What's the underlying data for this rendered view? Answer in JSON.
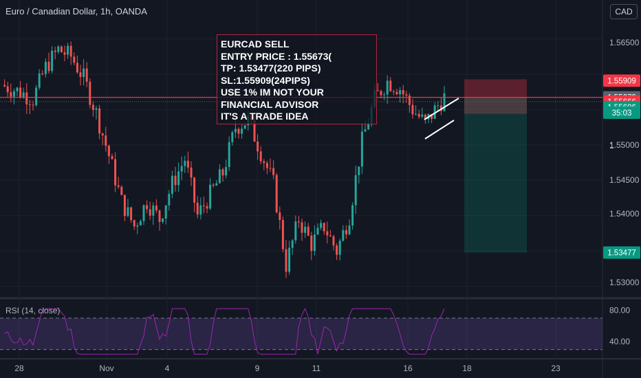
{
  "header": {
    "symbol_title": "Euro / Canadian Dollar, 1h, OANDA",
    "currency_button": "CAD"
  },
  "note": {
    "lines": [
      "EURCAD SELL",
      "ENTRY PRICE : 1.55673(",
      "TP: 1.53477(220 PIPS)",
      "SL:1.55909(24PIPS)",
      "USE 1% IM NOT YOUR",
      "FINANCIAL ADVISOR",
      "IT'S A TRADE IDEA"
    ]
  },
  "rsi": {
    "label": "RSI (14, close)",
    "upper_band": 70,
    "lower_band": 30,
    "axis_labels": [
      "80.00",
      "40.00"
    ]
  },
  "chart_data": {
    "type": "candlestick",
    "title": "Euro / Canadian Dollar, 1h, OANDA",
    "y_axis_labels": [
      "1.56500",
      "1.55000",
      "1.54500",
      "1.54000",
      "1.53000"
    ],
    "x_axis_labels": [
      "28",
      "Nov",
      "4",
      "9",
      "11",
      "16",
      "18",
      "23"
    ],
    "price_range_visible": [
      1.5285,
      1.5705
    ],
    "close_path": [
      [
        0,
        1.5585
      ],
      [
        6,
        1.5575
      ],
      [
        10,
        1.5565
      ],
      [
        14,
        1.561
      ],
      [
        18,
        1.5635
      ],
      [
        22,
        1.5625
      ],
      [
        26,
        1.5595
      ],
      [
        30,
        1.5545
      ],
      [
        34,
        1.5485
      ],
      [
        38,
        1.542
      ],
      [
        42,
        1.5385
      ],
      [
        46,
        1.542
      ],
      [
        50,
        1.5395
      ],
      [
        54,
        1.5445
      ],
      [
        58,
        1.548
      ],
      [
        62,
        1.54
      ],
      [
        66,
        1.543
      ],
      [
        70,
        1.546
      ],
      [
        74,
        1.5525
      ],
      [
        78,
        1.5535
      ],
      [
        82,
        1.549
      ],
      [
        86,
        1.5445
      ],
      [
        90,
        1.533
      ],
      [
        94,
        1.5395
      ],
      [
        98,
        1.536
      ],
      [
        102,
        1.5385
      ],
      [
        106,
        1.535
      ],
      [
        110,
        1.54
      ],
      [
        114,
        1.5505
      ],
      [
        118,
        1.5565
      ],
      [
        122,
        1.559
      ],
      [
        126,
        1.558
      ],
      [
        130,
        1.555
      ],
      [
        134,
        1.553
      ],
      [
        138,
        1.5556
      ],
      [
        140,
        1.55673
      ]
    ],
    "trade": {
      "direction": "short",
      "entry": 1.55673,
      "stop_loss": 1.55909,
      "take_profit": 1.53477
    },
    "price_tags": [
      {
        "label": "1.55909",
        "color": "#f23645",
        "price": 1.55909
      },
      {
        "label": "1.55673",
        "color": "#5d606b",
        "price": 1.55673
      },
      {
        "label": "1.55666",
        "color": "#f23645",
        "price": 1.55612
      },
      {
        "label": "1.55606",
        "color": "#089981",
        "price": 1.55535
      },
      {
        "label": "35:03",
        "color": "#089981",
        "price": 1.55455
      },
      {
        "label": "1.53477",
        "color": "#089981",
        "price": 1.53477
      }
    ],
    "grid": true,
    "colors": {
      "up": "#26a69a",
      "down": "#ef5350",
      "rsi_line": "#9c27b0",
      "line_red": "#f23645"
    }
  }
}
